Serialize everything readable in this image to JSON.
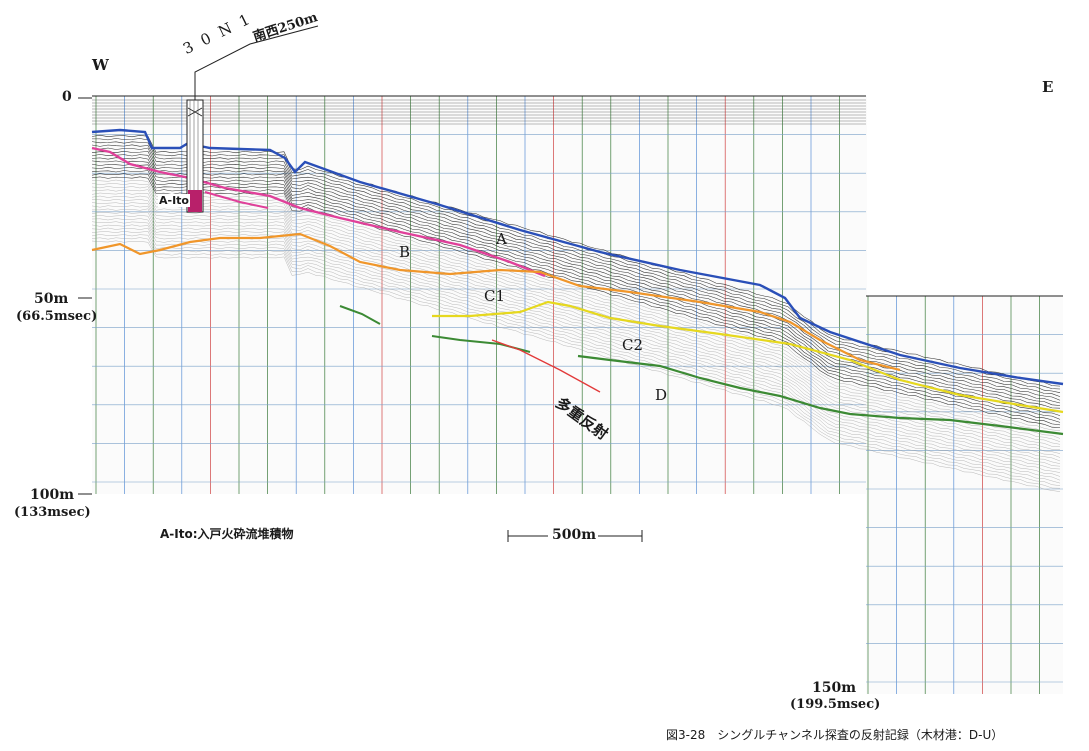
{
  "figure": {
    "west": "W",
    "east": "E",
    "borehole_label": "30N1",
    "borehole_note": "南西250m",
    "unit_note": "A-Ito",
    "depth_ticks": [
      {
        "depth": "0",
        "time": ""
      },
      {
        "depth": "50m",
        "time": "(66.5msec)"
      },
      {
        "depth": "100m",
        "time": "(133msec)"
      },
      {
        "depth": "150m",
        "time": "(199.5msec)"
      }
    ],
    "horizons": [
      {
        "label": "A",
        "color": "#2a4fb8"
      },
      {
        "label": "B",
        "color": "#e0409a"
      },
      {
        "label": "C1",
        "color": "#f0962a"
      },
      {
        "label": "C2",
        "color": "#e6d81e"
      },
      {
        "label": "D",
        "color": "#3c8a34"
      }
    ],
    "multiple_reflection": {
      "label": "多重反射",
      "color": "#e23a3a"
    },
    "legend": "A-Ito:入戸火砕流堆積物",
    "scale_bar": "500m",
    "caption": "図3-28　シングルチャンネル探査の反射記録（木材港：D-U）"
  }
}
